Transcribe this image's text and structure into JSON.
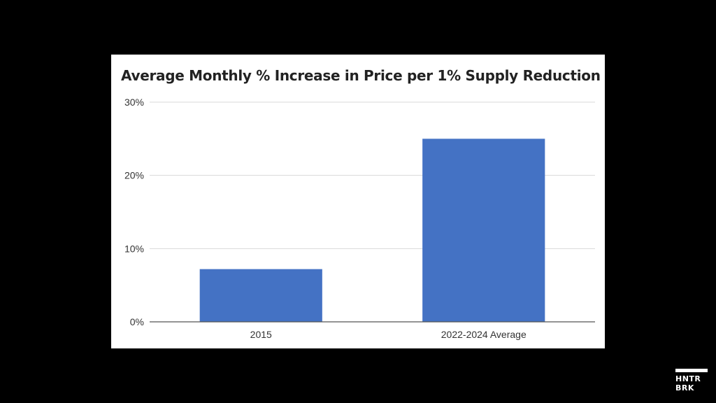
{
  "chart_data": {
    "type": "bar",
    "title": "Average Monthly % Increase in Price per 1% Supply Reduction",
    "categories": [
      "2015",
      "2022-2024 Average"
    ],
    "values": [
      7.2,
      25
    ],
    "value_unit": "%",
    "ylim": [
      0,
      30
    ],
    "yticks": [
      0,
      10,
      20,
      30
    ],
    "ytick_labels": [
      "0%",
      "10%",
      "20%",
      "30%"
    ],
    "xlabel": "",
    "ylabel": "",
    "grid": true,
    "legend": "none",
    "bar_color": "#4472C4",
    "grid_color": "#d9d9d9",
    "axis_color": "#555555"
  },
  "watermark": {
    "line1": "HNTR",
    "line2": "BRK"
  }
}
